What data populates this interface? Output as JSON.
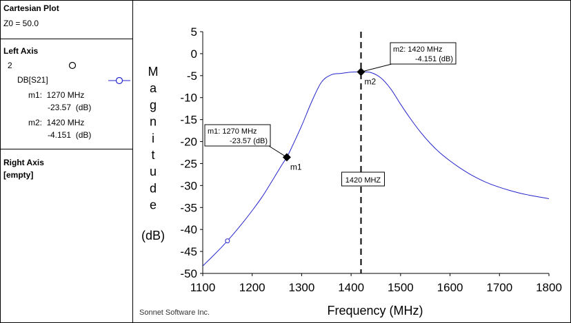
{
  "panel": {
    "title": "Cartesian Plot",
    "z0": "Z0 = 50.0",
    "left_axis_title": "Left Axis",
    "left_axis_count": "2",
    "trace_name": "DB[S21]",
    "m1_label": "m1:  1270 MHz",
    "m1_value": "-23.57  (dB)",
    "m2_label": "m2:  1420 MHz",
    "m2_value": "-4.151  (dB)",
    "right_axis_title": "Right Axis",
    "right_axis_value": "[empty]"
  },
  "footer": {
    "credit": "Sonnet Software Inc."
  },
  "colors": {
    "trace": "#2222cc",
    "axis": "#000000",
    "marker": "#000000"
  },
  "chart_data": {
    "type": "line",
    "xlabel": "Frequency (MHz)",
    "ylabel": [
      "M",
      "a",
      "g",
      "n",
      "i",
      "t",
      "u",
      "d",
      "e"
    ],
    "ylabel_unit": "(dB)",
    "xlim": [
      1100,
      1800
    ],
    "ylim": [
      -50,
      5
    ],
    "xticks": [
      1100,
      1200,
      1300,
      1400,
      1500,
      1600,
      1700,
      1800
    ],
    "yticks": [
      5,
      0,
      -5,
      -10,
      -15,
      -20,
      -25,
      -30,
      -35,
      -40,
      -45,
      -50
    ],
    "grid": false,
    "series": [
      {
        "name": "DB[S21]",
        "x": [
          1100,
          1120,
          1140,
          1160,
          1180,
          1200,
          1220,
          1240,
          1260,
          1270,
          1280,
          1300,
          1320,
          1340,
          1360,
          1380,
          1400,
          1420,
          1440,
          1460,
          1480,
          1500,
          1520,
          1540,
          1560,
          1580,
          1600,
          1620,
          1640,
          1660,
          1680,
          1700,
          1720,
          1740,
          1760,
          1780,
          1800
        ],
        "y": [
          -48.3,
          -46.1,
          -43.8,
          -41.3,
          -38.6,
          -35.7,
          -32.6,
          -29.0,
          -25.3,
          -23.57,
          -21.3,
          -16.4,
          -11.0,
          -6.5,
          -4.8,
          -4.5,
          -4.2,
          -4.151,
          -4.3,
          -5.5,
          -8.0,
          -11.5,
          -14.8,
          -17.8,
          -20.4,
          -22.6,
          -24.4,
          -26.0,
          -27.4,
          -28.6,
          -29.6,
          -30.4,
          -31.1,
          -31.7,
          -32.2,
          -32.6,
          -33.0
        ]
      }
    ],
    "trace_symbol_at": {
      "x": 1150,
      "y": -42.6
    },
    "markers": [
      {
        "name": "m1",
        "x": 1270,
        "y": -23.57,
        "line1": "m1:  1270 MHz",
        "line2": "-23.57  (dB)"
      },
      {
        "name": "m2",
        "x": 1420,
        "y": -4.151,
        "line1": "m2:  1420 MHz",
        "line2": "-4.151  (dB)"
      }
    ],
    "vline": {
      "x": 1420,
      "label": "1420 MHZ"
    }
  }
}
